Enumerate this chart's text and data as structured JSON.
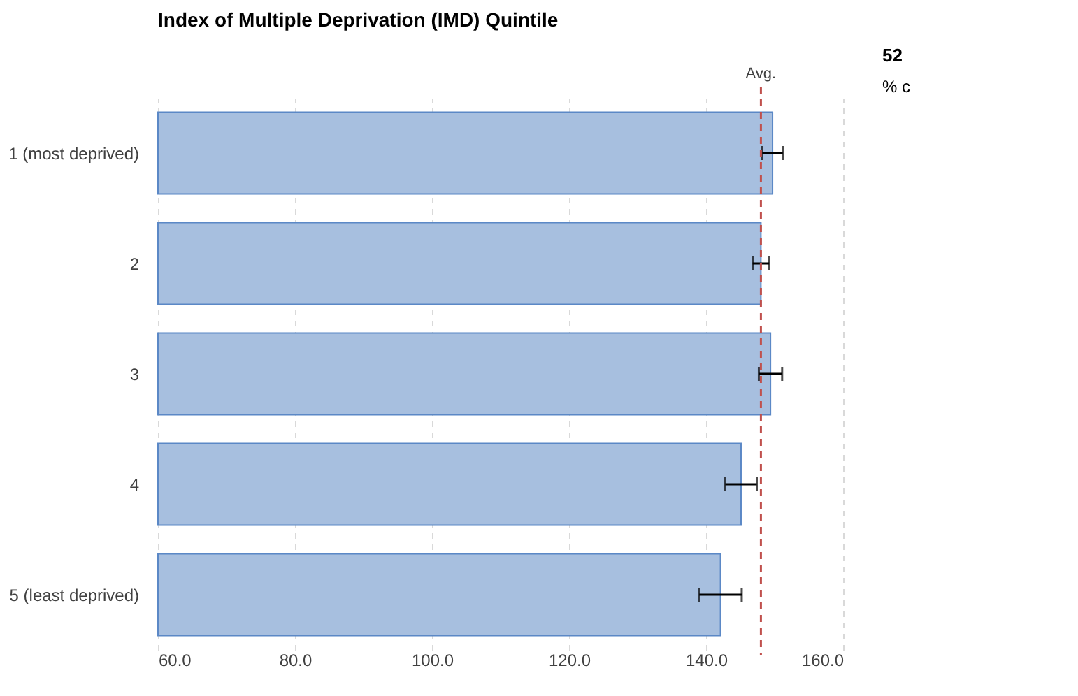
{
  "chart_data": {
    "type": "bar",
    "orientation": "horizontal",
    "title": "Index of Multiple Deprivation (IMD) Quintile",
    "categories": [
      "1 (most deprived)",
      "2",
      "3",
      "4",
      "5 (least deprived)"
    ],
    "values": [
      149.7,
      148.0,
      149.4,
      145.1,
      142.1
    ],
    "errors": [
      1.5,
      1.2,
      1.7,
      2.3,
      3.1
    ],
    "color": "#a7bfdf",
    "xlim": [
      60,
      160
    ],
    "xticks": [
      {
        "value": 60,
        "label": "60.0"
      },
      {
        "value": 80,
        "label": "80.0"
      },
      {
        "value": 100,
        "label": "100.0"
      },
      {
        "value": 120,
        "label": "120.0"
      },
      {
        "value": 140,
        "label": "140.0"
      },
      {
        "value": 160,
        "label": "160.0"
      }
    ],
    "grid": "x",
    "ref_lines": [
      {
        "axis": "x",
        "value": 148.0,
        "label": "Avg.",
        "color": "#c0504d",
        "line_style": "dashed"
      }
    ],
    "annotations": [
      "52",
      "% c"
    ]
  }
}
